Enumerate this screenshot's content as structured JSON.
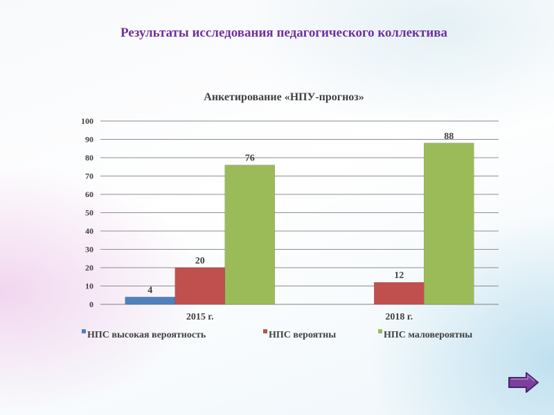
{
  "slide": {
    "title": "Результаты исследования педагогического коллектива"
  },
  "chart_data": {
    "type": "bar",
    "title": "Анкетирование «НПУ-прогноз»",
    "categories": [
      "2015 г.",
      "2018 г."
    ],
    "series": [
      {
        "name": "НПС высокая вероятность",
        "values": [
          4,
          0
        ],
        "labels": [
          "4",
          ""
        ],
        "color": "#4f81bd"
      },
      {
        "name": "НПС вероятны",
        "values": [
          20,
          12
        ],
        "labels": [
          "20",
          "12"
        ],
        "color": "#c0504d"
      },
      {
        "name": "НПС маловероятны",
        "values": [
          76,
          88
        ],
        "labels": [
          "76",
          "88"
        ],
        "color": "#9bbb59"
      }
    ],
    "yticks": [
      "0",
      "10",
      "20",
      "30",
      "40",
      "50",
      "60",
      "70",
      "80",
      "90",
      "100"
    ],
    "ylim": [
      0,
      100
    ],
    "grid": true,
    "legend_position": "bottom"
  },
  "nav": {
    "next_icon": "right-arrow-icon",
    "accent_color": "#7030a0"
  }
}
